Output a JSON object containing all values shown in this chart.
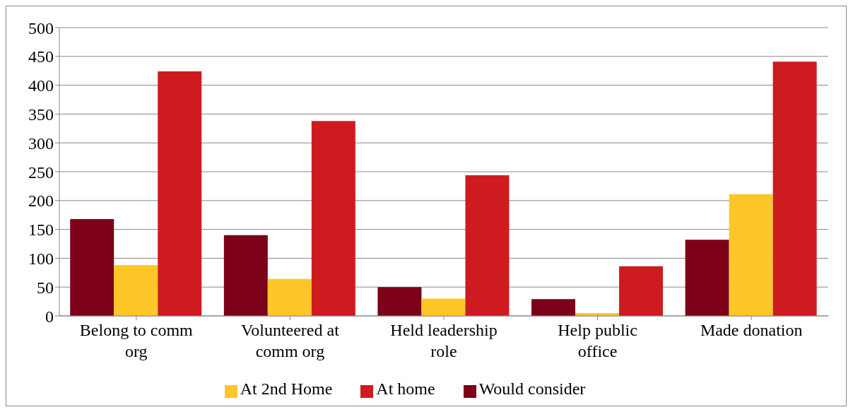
{
  "chart_data": {
    "type": "bar",
    "categories": [
      "Belong to comm org",
      "Volunteered at comm org",
      "Held leadership role",
      "Help public office",
      "Made donation"
    ],
    "series": [
      {
        "name": "Would consider",
        "color": "#7b0018",
        "values": [
          168,
          140,
          50,
          29,
          132
        ]
      },
      {
        "name": "At 2nd Home",
        "color": "#ffc629",
        "values": [
          88,
          64,
          30,
          5,
          211
        ]
      },
      {
        "name": "At home",
        "color": "#cd1b20",
        "values": [
          424,
          338,
          244,
          86,
          441
        ]
      }
    ],
    "ylim": [
      0,
      500
    ],
    "yticks": [
      0,
      50,
      100,
      150,
      200,
      250,
      300,
      350,
      400,
      450,
      500
    ],
    "grid": "y",
    "legend": "bottom"
  }
}
